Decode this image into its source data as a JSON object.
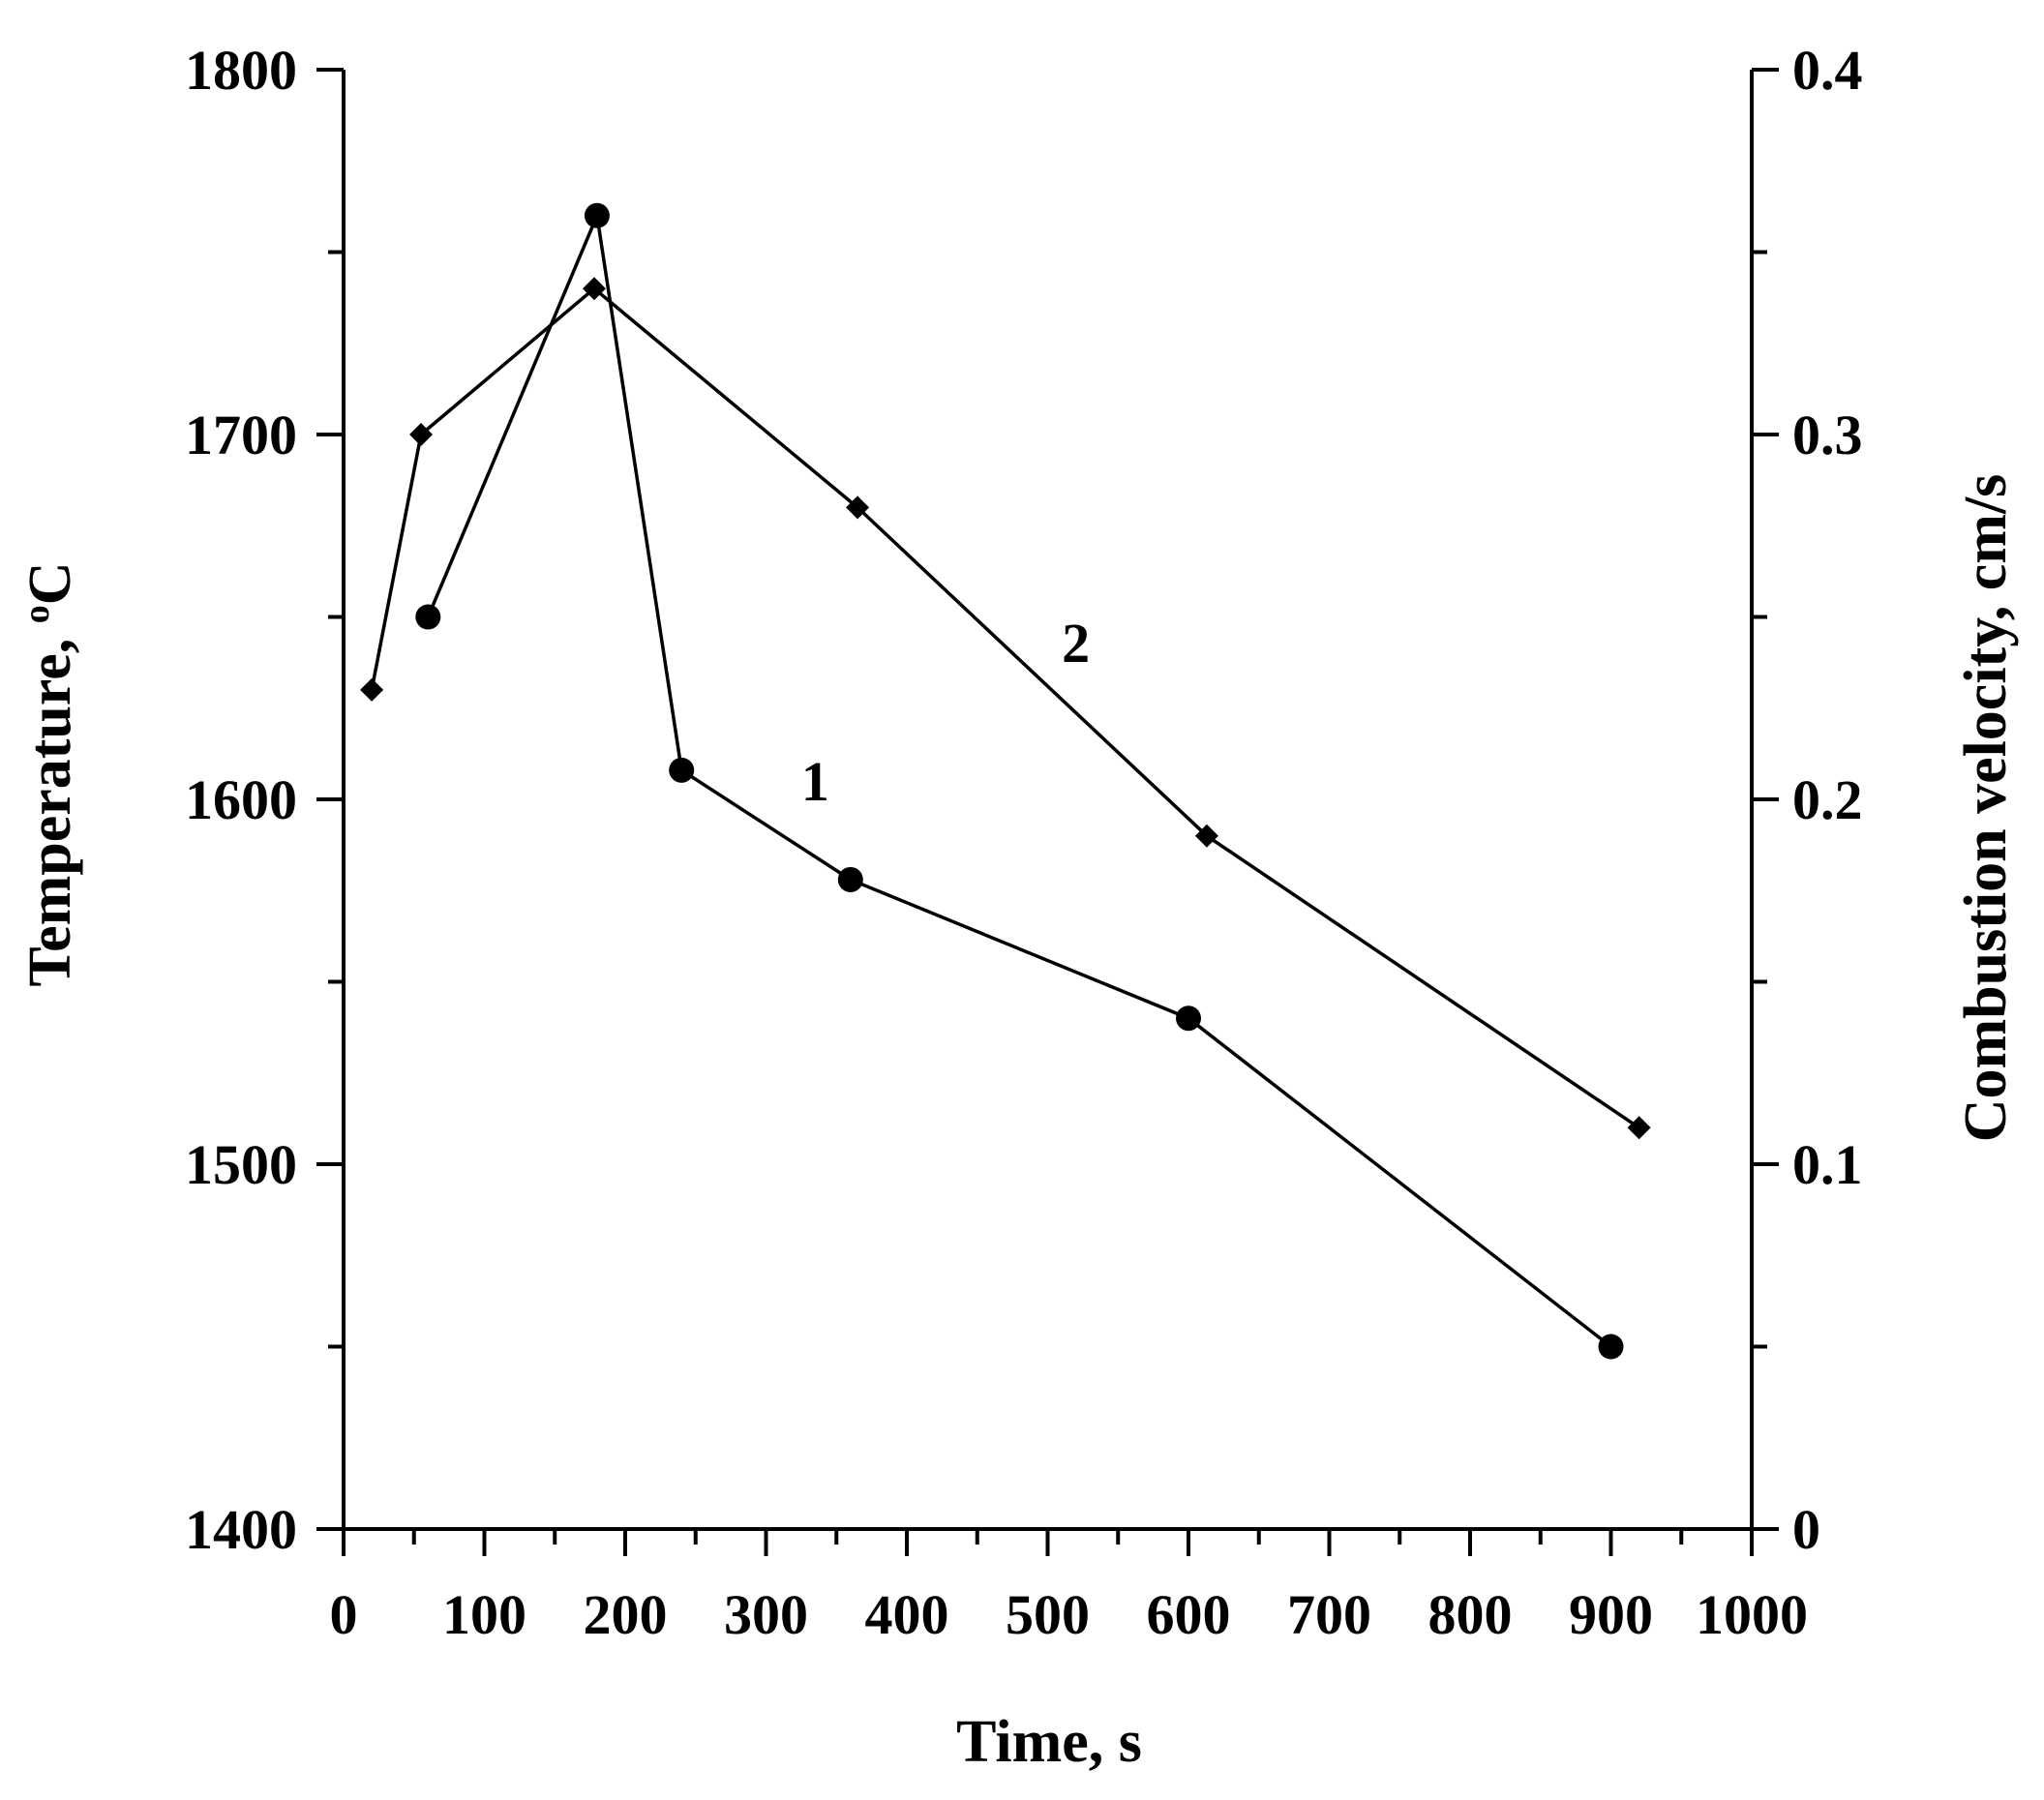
{
  "chart_data": {
    "type": "line",
    "x_axis": {
      "label": "Time, s",
      "range": [
        0,
        1000
      ],
      "major_ticks": [
        0,
        100,
        200,
        300,
        400,
        500,
        600,
        700,
        800,
        900,
        1000
      ],
      "tick_labels": [
        "0",
        "100",
        "200",
        "300",
        "400",
        "500",
        "600",
        "700",
        "800",
        "900",
        "1000"
      ],
      "minor_step": 50
    },
    "y_axis_left": {
      "label": "Temperature, ",
      "label_superscript": "o",
      "label_unit": "C",
      "range": [
        1400,
        1800
      ],
      "major_ticks": [
        1400,
        1500,
        1600,
        1700,
        1800
      ],
      "tick_labels": [
        "1400",
        "1500",
        "1600",
        "1700",
        "1800"
      ],
      "minor_step": 50
    },
    "y_axis_right": {
      "label": "Combustion velocity, cm/s",
      "range": [
        0,
        0.4
      ],
      "major_ticks": [
        0,
        0.1,
        0.2,
        0.3,
        0.4
      ],
      "tick_labels": [
        "0",
        "0.1",
        "0.2",
        "0.3",
        "0.4"
      ],
      "minor_step": 0.05
    },
    "grid": false,
    "series": [
      {
        "name": "1",
        "axis": "left",
        "marker": "circle",
        "x": [
          60,
          180,
          240,
          360,
          600,
          900
        ],
        "y": [
          1650,
          1760,
          1608,
          1578,
          1540,
          1450
        ],
        "label_at": {
          "x": 335,
          "y": 1605
        }
      },
      {
        "name": "2",
        "axis": "right",
        "marker": "diamond",
        "x": [
          20,
          55,
          178,
          365,
          613,
          920
        ],
        "y": [
          0.23,
          0.3,
          0.34,
          0.28,
          0.19,
          0.11
        ],
        "label_at": {
          "x": 520,
          "y": 0.243
        }
      }
    ],
    "colors": {
      "line": "#000000",
      "marker": "#000000"
    }
  }
}
